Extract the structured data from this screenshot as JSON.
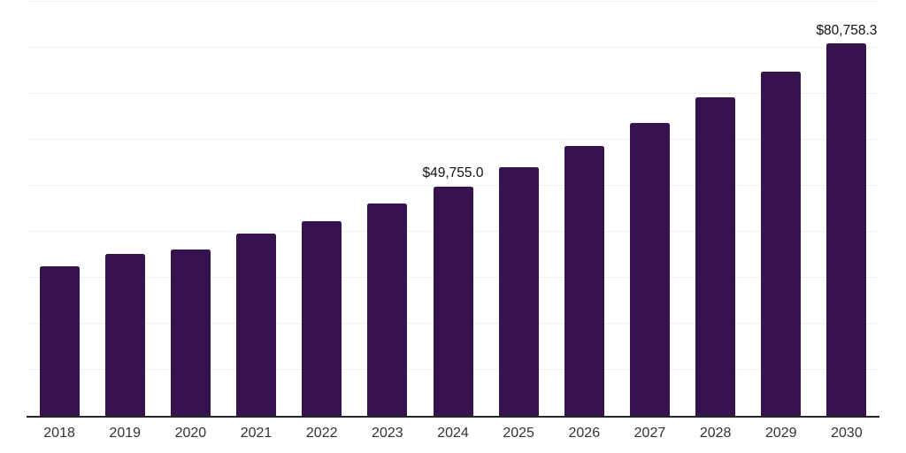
{
  "chart_data": {
    "type": "bar",
    "categories": [
      "2018",
      "2019",
      "2020",
      "2021",
      "2022",
      "2023",
      "2024",
      "2025",
      "2026",
      "2027",
      "2028",
      "2029",
      "2030"
    ],
    "values": [
      32500,
      35200,
      36100,
      39500,
      42300,
      46000,
      49755,
      54000,
      58500,
      63500,
      69000,
      74700,
      80758.3
    ],
    "data_labels": [
      "",
      "",
      "",
      "",
      "",
      "",
      "$49,755.0",
      "",
      "",
      "",
      "",
      "",
      "$80,758.3"
    ],
    "title": "",
    "xlabel": "",
    "ylabel": "",
    "ylim": [
      0,
      90000
    ],
    "gridline_interval": 10000,
    "grid": true,
    "legend": false,
    "y_axis_labels_visible": false,
    "colors": {
      "bar": "#36124E",
      "axis_line": "#262626",
      "gridline": "#EFEFEF",
      "data_label_text": "#111111",
      "tick_label_text": "#333333",
      "background": "#FFFFFF"
    }
  }
}
